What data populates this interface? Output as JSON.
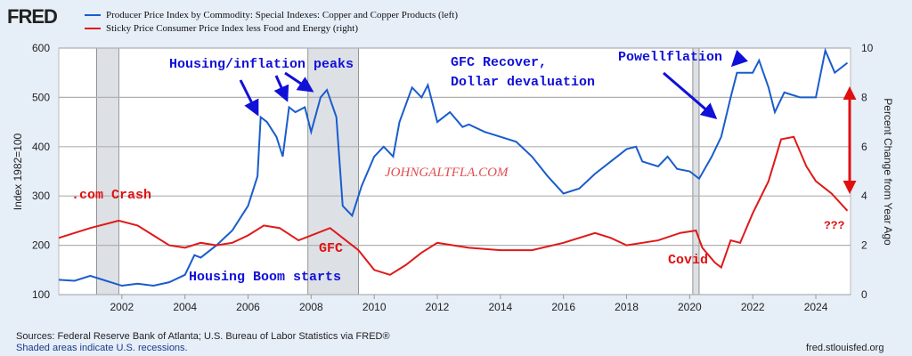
{
  "header": {
    "logo": "FRED"
  },
  "chart_data": {
    "type": "line",
    "series": [
      {
        "name": "Producer Price Index by Commodity: Special Indexes: Copper and Copper Products (left)",
        "axis": "left",
        "color": "#1a5ccc",
        "x": [
          2000.0,
          2000.5,
          2001.0,
          2001.5,
          2002.0,
          2002.5,
          2003.0,
          2003.5,
          2004.0,
          2004.3,
          2004.5,
          2005.0,
          2005.5,
          2006.0,
          2006.3,
          2006.4,
          2006.6,
          2006.9,
          2007.1,
          2007.3,
          2007.5,
          2007.8,
          2008.0,
          2008.3,
          2008.5,
          2008.8,
          2009.0,
          2009.3,
          2009.6,
          2010.0,
          2010.3,
          2010.6,
          2010.8,
          2011.2,
          2011.5,
          2011.7,
          2012.0,
          2012.4,
          2012.8,
          2013.0,
          2013.5,
          2014.0,
          2014.5,
          2015.0,
          2015.5,
          2016.0,
          2016.5,
          2017.0,
          2017.5,
          2018.0,
          2018.3,
          2018.5,
          2019.0,
          2019.3,
          2019.6,
          2020.0,
          2020.3,
          2020.7,
          2021.0,
          2021.3,
          2021.5,
          2022.0,
          2022.2,
          2022.5,
          2022.7,
          2023.0,
          2023.5,
          2024.0,
          2024.3,
          2024.6,
          2025.0
        ],
        "values": [
          130,
          128,
          138,
          128,
          118,
          122,
          118,
          125,
          140,
          180,
          175,
          200,
          230,
          280,
          340,
          460,
          450,
          420,
          380,
          480,
          470,
          480,
          430,
          500,
          515,
          460,
          280,
          260,
          320,
          380,
          400,
          380,
          450,
          520,
          500,
          525,
          450,
          470,
          440,
          445,
          430,
          420,
          410,
          380,
          340,
          305,
          315,
          345,
          370,
          395,
          400,
          370,
          360,
          380,
          355,
          350,
          335,
          380,
          420,
          500,
          550,
          550,
          575,
          520,
          470,
          510,
          500,
          500,
          595,
          550,
          570
        ]
      },
      {
        "name": "Sticky Price Consumer Price Index less Food and Energy (right)",
        "axis": "right",
        "color": "#e01818",
        "x": [
          2000.0,
          2001.0,
          2001.9,
          2002.5,
          2003.0,
          2003.5,
          2004.0,
          2004.5,
          2005.0,
          2005.5,
          2006.0,
          2006.5,
          2007.0,
          2007.6,
          2008.0,
          2008.6,
          2009.0,
          2009.5,
          2010.0,
          2010.5,
          2011.0,
          2011.5,
          2012.0,
          2013.0,
          2014.0,
          2015.0,
          2016.0,
          2017.0,
          2017.5,
          2018.0,
          2019.0,
          2019.7,
          2020.2,
          2020.4,
          2020.8,
          2021.0,
          2021.3,
          2021.6,
          2022.0,
          2022.5,
          2022.9,
          2023.3,
          2023.7,
          2024.0,
          2024.5,
          2025.0
        ],
        "values": [
          2.3,
          2.7,
          3.0,
          2.8,
          2.4,
          2.0,
          1.9,
          2.1,
          2.0,
          2.1,
          2.4,
          2.8,
          2.7,
          2.2,
          2.4,
          2.7,
          2.3,
          1.8,
          1.0,
          0.8,
          1.2,
          1.7,
          2.1,
          1.9,
          1.8,
          1.8,
          2.1,
          2.5,
          2.3,
          2.0,
          2.2,
          2.5,
          2.6,
          1.9,
          1.3,
          1.1,
          2.2,
          2.1,
          3.3,
          4.6,
          6.3,
          6.4,
          5.2,
          4.6,
          4.1,
          3.4
        ]
      }
    ],
    "recessions": [
      [
        2001.2,
        2001.9
      ],
      [
        2007.9,
        2009.5
      ],
      [
        2020.1,
        2020.3
      ]
    ],
    "xlim": [
      2000,
      2025.1
    ],
    "ylim": [
      100,
      600
    ],
    "ylim_right": [
      0,
      10
    ],
    "xticks": [
      "2002",
      "2004",
      "2006",
      "2008",
      "2010",
      "2012",
      "2014",
      "2016",
      "2018",
      "2020",
      "2022",
      "2024"
    ],
    "yticks": [
      "100",
      "200",
      "300",
      "400",
      "500",
      "600"
    ],
    "yticks_right": [
      "0",
      "2",
      "4",
      "6",
      "8",
      "10"
    ],
    "ylabel": "Index 1982=100",
    "ylabel_right": "Percent Change from Year Ago",
    "grid": true,
    "legend_placement": "top-left",
    "annotations": {
      "housing_peaks": "Housing/inflation peaks",
      "gfc_recover_1": "GFC Recover,",
      "gfc_recover_2": "Dollar devaluation",
      "powellflation": "Powellflation",
      "com_crash": ".com Crash",
      "gfc": "GFC",
      "housing_boom": "Housing Boom starts",
      "covid": "Covid",
      "question": "???",
      "watermark": "JOHNGALTFLA.COM"
    }
  },
  "footer": {
    "sources": "Sources: Federal Reserve Bank of Atlanta; U.S. Bureau of Labor Statistics via FRED®",
    "shaded": "Shaded areas indicate U.S. recessions.",
    "site": "fred.stlouisfed.org"
  }
}
